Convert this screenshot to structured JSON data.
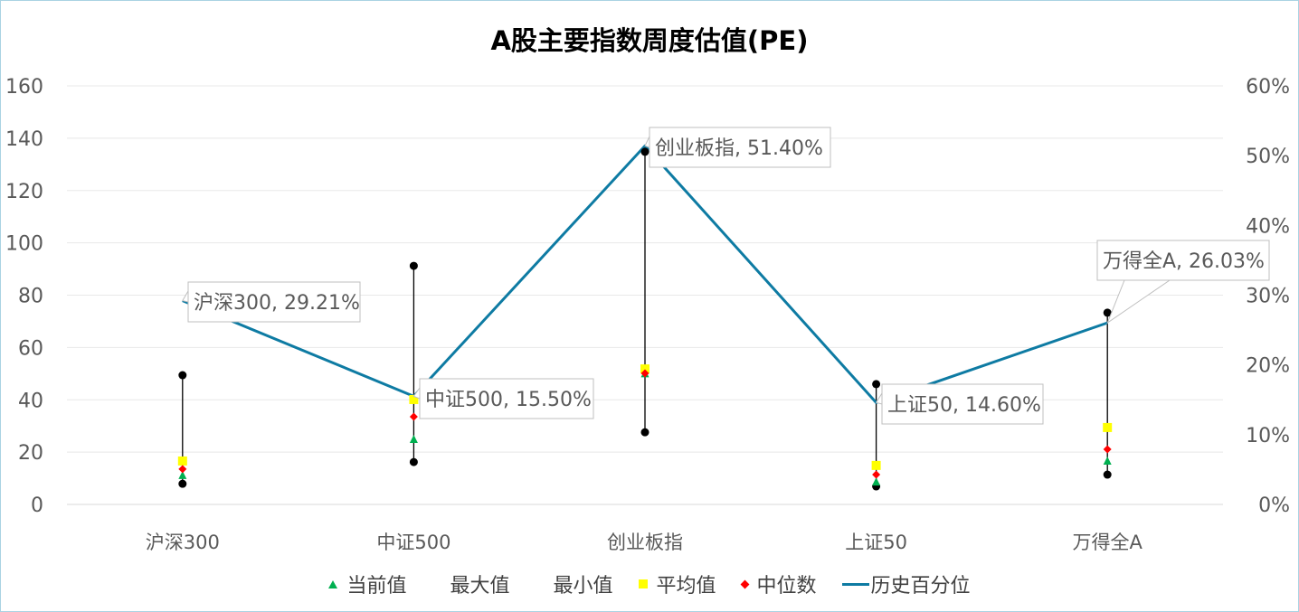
{
  "chart_data": {
    "type": "scatter-line-combo",
    "title": "A股主要指数周度估值(PE)",
    "categories": [
      "沪深300",
      "中证500",
      "创业板指",
      "上证50",
      "万得全A"
    ],
    "left_axis": {
      "min": 0,
      "max": 160,
      "step": 20,
      "ticks": [
        "0",
        "20",
        "40",
        "60",
        "80",
        "100",
        "120",
        "140",
        "160"
      ]
    },
    "right_axis": {
      "min": 0,
      "max": 0.6,
      "step": 0.1,
      "ticks": [
        "0%",
        "10%",
        "20%",
        "30%",
        "40%",
        "50%",
        "60%"
      ]
    },
    "series": [
      {
        "name": "当前值",
        "axis": "left",
        "marker": "triangle",
        "color": "#00b050",
        "values": [
          11.1,
          24.9,
          50.0,
          8.6,
          16.6
        ]
      },
      {
        "name": "最大值",
        "axis": "left",
        "marker": "circle",
        "color": "#000000",
        "values": [
          49.4,
          91.2,
          134.8,
          46.0,
          73.3
        ]
      },
      {
        "name": "最小值",
        "axis": "left",
        "marker": "circle",
        "color": "#000000",
        "values": [
          7.9,
          16.2,
          27.6,
          6.9,
          11.4
        ]
      },
      {
        "name": "平均值",
        "axis": "left",
        "marker": "square",
        "color": "#ffff00",
        "values": [
          16.6,
          40.1,
          51.8,
          14.9,
          29.4
        ]
      },
      {
        "name": "中位数",
        "axis": "left",
        "marker": "diamond",
        "color": "#ff0000",
        "values": [
          13.5,
          33.5,
          50.1,
          11.4,
          21.1
        ]
      },
      {
        "name": "历史百分位",
        "axis": "right",
        "marker": "line",
        "color": "#0e7ba3",
        "values": [
          0.2921,
          0.155,
          0.514,
          0.146,
          0.2603
        ]
      }
    ],
    "data_labels": [
      "沪深300, 29.21%",
      "中证500, 15.50%",
      "创业板指, 51.40%",
      "上证50, 14.60%",
      "万得全A, 26.03%"
    ],
    "grid": true,
    "legend_position": "bottom"
  },
  "legend": [
    {
      "label": "当前值",
      "swatch": "tri"
    },
    {
      "label": "最大值",
      "swatch": "none"
    },
    {
      "label": "最小值",
      "swatch": "none"
    },
    {
      "label": "平均值",
      "swatch": "sq"
    },
    {
      "label": "中位数",
      "swatch": "dia"
    },
    {
      "label": "历史百分位",
      "swatch": "line"
    }
  ]
}
